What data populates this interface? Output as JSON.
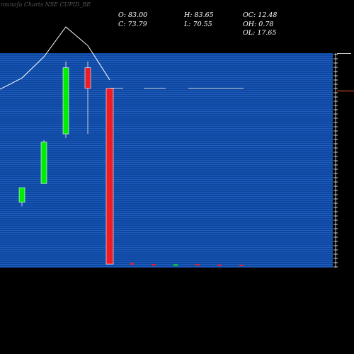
{
  "watermark": "munafa Charts NSE CUPID_BE",
  "ohlc": {
    "open": "O: 83.00",
    "high": "H: 83.65",
    "oc": "OC: 12.48",
    "close": "C: 73.79",
    "low": "L: 70.55",
    "oh": "OH: 0.78",
    "ol": "OL: 17.65"
  },
  "colors": {
    "panel": "#0d47a1",
    "up": "#00ee00",
    "down": "#ee1c25",
    "line": "#ffffff",
    "text": "#ffffff"
  },
  "chart_data": {
    "type": "candlestick",
    "title": "",
    "xlabel": "",
    "ylabel": "",
    "ylim": [
      0,
      100
    ],
    "candles": [
      {
        "open": 31,
        "high": 38,
        "low": 29,
        "close": 38,
        "volume": 18
      },
      {
        "open": 40,
        "high": 61,
        "low": 40,
        "close": 60,
        "volume": 52
      },
      {
        "open": 64,
        "high": 99,
        "low": 62,
        "close": 96,
        "volume": 100
      },
      {
        "open": 96,
        "high": 99,
        "low": 64,
        "close": 86,
        "volume": 70
      },
      {
        "open": 86,
        "high": 86,
        "low": 1,
        "close": 1,
        "volume": 15
      },
      {
        "open": 1.5,
        "high": 1.5,
        "low": 0.7,
        "close": 0.8,
        "volume": 0
      },
      {
        "open": 1.0,
        "high": 1.0,
        "low": 0.6,
        "close": 0.7,
        "volume": 0
      },
      {
        "open": 0.6,
        "high": 0.9,
        "low": 0.5,
        "close": 0.9,
        "volume": 0
      },
      {
        "open": 1.0,
        "high": 1.0,
        "low": 0.6,
        "close": 0.7,
        "volume": 0
      },
      {
        "open": 0.8,
        "high": 0.8,
        "low": 0.4,
        "close": 0.5,
        "volume": 0
      },
      {
        "open": 0.7,
        "high": 0.7,
        "low": 0.2,
        "close": 0.3,
        "volume": 0
      }
    ]
  }
}
